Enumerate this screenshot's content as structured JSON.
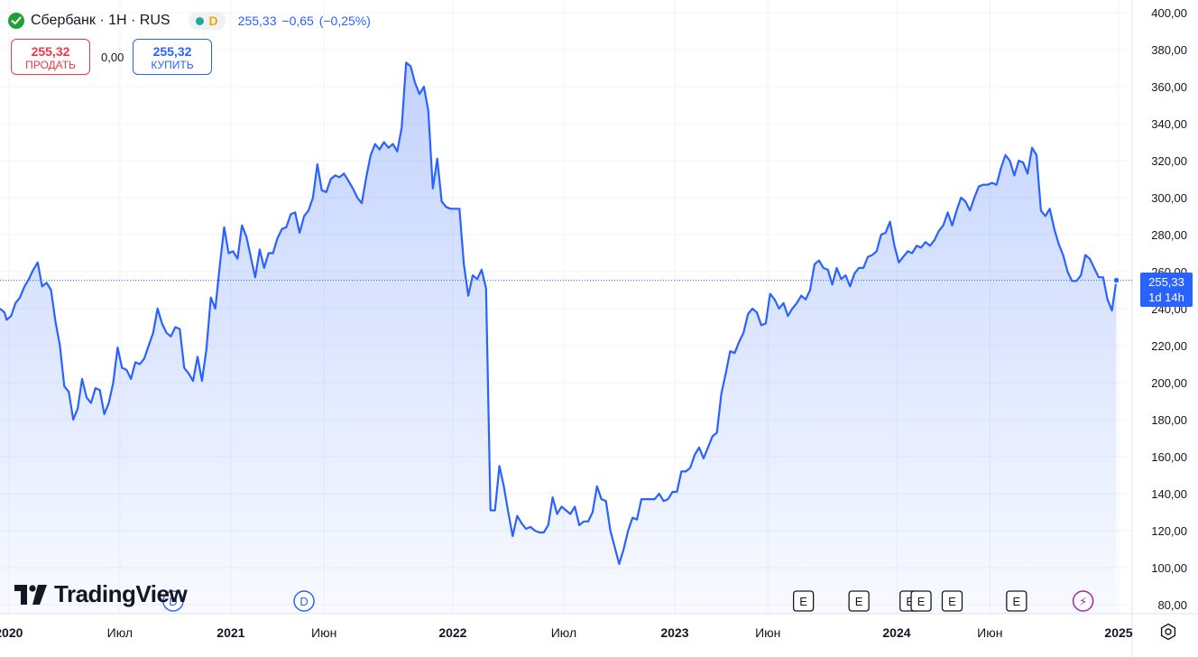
{
  "header": {
    "symbol": "Сбербанк · 1Н · RUS",
    "status_letter": "D",
    "last_price": "255,33",
    "change": "−0,65",
    "change_pct": "(−0,25%)"
  },
  "trade": {
    "sell_price": "255,32",
    "sell_label": "ПРОДАТЬ",
    "spread": "0,00",
    "buy_price": "255,32",
    "buy_label": "КУПИТЬ"
  },
  "logo": "TradingView",
  "price_tag": {
    "price": "255,33",
    "countdown": "1d 14h"
  },
  "colors": {
    "line": "#2962ff",
    "fill": "#2962ff",
    "sell": "#f23645",
    "buy": "#2962ff",
    "grid": "#f0f3fa"
  },
  "chart_data": {
    "type": "area",
    "title": "Сбербанк · 1Н · RUS",
    "xlabel": "",
    "ylabel": "",
    "ylim": [
      80,
      400
    ],
    "xlim": [
      2019.96,
      2025.0
    ],
    "y_ticks": [
      80,
      100,
      120,
      140,
      160,
      180,
      200,
      220,
      240,
      260,
      280,
      300,
      320,
      340,
      360,
      380,
      400
    ],
    "y_tick_labels": [
      "80,00",
      "100,00",
      "120,00",
      "140,00",
      "160,00",
      "180,00",
      "200,00",
      "220,00",
      "240,00",
      "260,00",
      "280,00",
      "300,00",
      "320,00",
      "340,00",
      "360,00",
      "380,00",
      "400,00"
    ],
    "x_ticks": [
      {
        "t": 2020.0,
        "label": "2020",
        "bold": true
      },
      {
        "t": 2020.5,
        "label": "Июл",
        "bold": false
      },
      {
        "t": 2021.0,
        "label": "2021",
        "bold": true
      },
      {
        "t": 2021.42,
        "label": "Июн",
        "bold": false
      },
      {
        "t": 2022.0,
        "label": "2022",
        "bold": true
      },
      {
        "t": 2022.5,
        "label": "Июл",
        "bold": false
      },
      {
        "t": 2023.0,
        "label": "2023",
        "bold": true
      },
      {
        "t": 2023.42,
        "label": "Июн",
        "bold": false
      },
      {
        "t": 2024.0,
        "label": "2024",
        "bold": true
      },
      {
        "t": 2024.42,
        "label": "Июн",
        "bold": false
      },
      {
        "t": 2025.0,
        "label": "2025",
        "bold": true
      }
    ],
    "grid": true,
    "last_value": 255.33,
    "markers": [
      {
        "t": 2020.74,
        "label": "D"
      },
      {
        "t": 2021.33,
        "label": "D"
      },
      {
        "t": 2023.58,
        "label": "E"
      },
      {
        "t": 2023.83,
        "label": "E"
      },
      {
        "t": 2024.06,
        "label": "E"
      },
      {
        "t": 2024.11,
        "label": "E"
      },
      {
        "t": 2024.25,
        "label": "E"
      },
      {
        "t": 2024.54,
        "label": "E"
      },
      {
        "t": 2024.84,
        "label": "⚡"
      }
    ],
    "series": [
      {
        "points": [
          [
            2019.96,
            240
          ],
          [
            2019.98,
            238
          ],
          [
            2019.99,
            234
          ],
          [
            2020.01,
            236
          ],
          [
            2020.03,
            243
          ],
          [
            2020.05,
            246
          ],
          [
            2020.07,
            252
          ],
          [
            2020.09,
            256
          ],
          [
            2020.11,
            261
          ],
          [
            2020.13,
            265
          ],
          [
            2020.15,
            252
          ],
          [
            2020.17,
            254
          ],
          [
            2020.19,
            250
          ],
          [
            2020.21,
            233
          ],
          [
            2020.23,
            220
          ],
          [
            2020.25,
            198
          ],
          [
            2020.27,
            195
          ],
          [
            2020.29,
            180
          ],
          [
            2020.31,
            186
          ],
          [
            2020.33,
            202
          ],
          [
            2020.35,
            192
          ],
          [
            2020.37,
            189
          ],
          [
            2020.39,
            197
          ],
          [
            2020.41,
            196
          ],
          [
            2020.43,
            183
          ],
          [
            2020.45,
            189
          ],
          [
            2020.47,
            200
          ],
          [
            2020.49,
            219
          ],
          [
            2020.51,
            208
          ],
          [
            2020.53,
            207
          ],
          [
            2020.55,
            202
          ],
          [
            2020.57,
            211
          ],
          [
            2020.59,
            210
          ],
          [
            2020.61,
            213
          ],
          [
            2020.63,
            220
          ],
          [
            2020.65,
            227
          ],
          [
            2020.67,
            240
          ],
          [
            2020.69,
            232
          ],
          [
            2020.71,
            227
          ],
          [
            2020.73,
            225
          ],
          [
            2020.75,
            230
          ],
          [
            2020.77,
            229
          ],
          [
            2020.79,
            208
          ],
          [
            2020.81,
            205
          ],
          [
            2020.83,
            201
          ],
          [
            2020.85,
            214
          ],
          [
            2020.87,
            201
          ],
          [
            2020.89,
            218
          ],
          [
            2020.91,
            246
          ],
          [
            2020.93,
            240
          ],
          [
            2020.95,
            263
          ],
          [
            2020.97,
            284
          ],
          [
            2020.99,
            270
          ],
          [
            2021.01,
            271
          ],
          [
            2021.03,
            267
          ],
          [
            2021.05,
            285
          ],
          [
            2021.07,
            279
          ],
          [
            2021.09,
            268
          ],
          [
            2021.11,
            257
          ],
          [
            2021.13,
            272
          ],
          [
            2021.15,
            262
          ],
          [
            2021.17,
            270
          ],
          [
            2021.19,
            270
          ],
          [
            2021.21,
            278
          ],
          [
            2021.23,
            283
          ],
          [
            2021.25,
            284
          ],
          [
            2021.27,
            291
          ],
          [
            2021.29,
            292
          ],
          [
            2021.31,
            281
          ],
          [
            2021.33,
            290
          ],
          [
            2021.35,
            293
          ],
          [
            2021.37,
            300
          ],
          [
            2021.39,
            318
          ],
          [
            2021.41,
            304
          ],
          [
            2021.43,
            303
          ],
          [
            2021.45,
            310
          ],
          [
            2021.47,
            312
          ],
          [
            2021.49,
            311
          ],
          [
            2021.51,
            313
          ],
          [
            2021.53,
            309
          ],
          [
            2021.55,
            305
          ],
          [
            2021.57,
            300
          ],
          [
            2021.59,
            297
          ],
          [
            2021.61,
            311
          ],
          [
            2021.63,
            323
          ],
          [
            2021.65,
            329
          ],
          [
            2021.67,
            326
          ],
          [
            2021.69,
            330
          ],
          [
            2021.71,
            327
          ],
          [
            2021.73,
            329
          ],
          [
            2021.75,
            325
          ],
          [
            2021.77,
            338
          ],
          [
            2021.79,
            373
          ],
          [
            2021.81,
            371
          ],
          [
            2021.83,
            362
          ],
          [
            2021.85,
            356
          ],
          [
            2021.87,
            360
          ],
          [
            2021.89,
            347
          ],
          [
            2021.91,
            305
          ],
          [
            2021.93,
            321
          ],
          [
            2021.95,
            298
          ],
          [
            2021.97,
            295
          ],
          [
            2021.99,
            294
          ],
          [
            2022.01,
            294
          ],
          [
            2022.03,
            294
          ],
          [
            2022.05,
            264
          ],
          [
            2022.07,
            247
          ],
          [
            2022.09,
            258
          ],
          [
            2022.11,
            256
          ],
          [
            2022.13,
            261
          ],
          [
            2022.15,
            251
          ],
          [
            2022.17,
            131
          ],
          [
            2022.19,
            131
          ],
          [
            2022.21,
            155
          ],
          [
            2022.23,
            144
          ],
          [
            2022.25,
            130
          ],
          [
            2022.27,
            117
          ],
          [
            2022.29,
            128
          ],
          [
            2022.31,
            124
          ],
          [
            2022.33,
            121
          ],
          [
            2022.35,
            122
          ],
          [
            2022.37,
            120
          ],
          [
            2022.39,
            119
          ],
          [
            2022.41,
            119
          ],
          [
            2022.43,
            123
          ],
          [
            2022.45,
            138
          ],
          [
            2022.47,
            129
          ],
          [
            2022.49,
            133
          ],
          [
            2022.51,
            131
          ],
          [
            2022.53,
            129
          ],
          [
            2022.55,
            133
          ],
          [
            2022.57,
            123
          ],
          [
            2022.59,
            125
          ],
          [
            2022.61,
            125
          ],
          [
            2022.63,
            130
          ],
          [
            2022.65,
            144
          ],
          [
            2022.67,
            137
          ],
          [
            2022.69,
            136
          ],
          [
            2022.71,
            120
          ],
          [
            2022.73,
            111
          ],
          [
            2022.75,
            102
          ],
          [
            2022.77,
            110
          ],
          [
            2022.79,
            120
          ],
          [
            2022.81,
            127
          ],
          [
            2022.83,
            126
          ],
          [
            2022.85,
            137
          ],
          [
            2022.87,
            137
          ],
          [
            2022.89,
            137
          ],
          [
            2022.91,
            137
          ],
          [
            2022.93,
            140
          ],
          [
            2022.95,
            136
          ],
          [
            2022.97,
            137
          ],
          [
            2022.99,
            141
          ],
          [
            2023.01,
            141
          ],
          [
            2023.03,
            152
          ],
          [
            2023.05,
            152
          ],
          [
            2023.07,
            154
          ],
          [
            2023.09,
            161
          ],
          [
            2023.11,
            165
          ],
          [
            2023.13,
            159
          ],
          [
            2023.15,
            165
          ],
          [
            2023.17,
            171
          ],
          [
            2023.19,
            173
          ],
          [
            2023.21,
            194
          ],
          [
            2023.23,
            205
          ],
          [
            2023.25,
            217
          ],
          [
            2023.27,
            216
          ],
          [
            2023.29,
            222
          ],
          [
            2023.31,
            227
          ],
          [
            2023.33,
            237
          ],
          [
            2023.35,
            240
          ],
          [
            2023.37,
            238
          ],
          [
            2023.39,
            231
          ],
          [
            2023.41,
            232
          ],
          [
            2023.43,
            248
          ],
          [
            2023.45,
            245
          ],
          [
            2023.47,
            240
          ],
          [
            2023.49,
            243
          ],
          [
            2023.51,
            236
          ],
          [
            2023.53,
            240
          ],
          [
            2023.55,
            243
          ],
          [
            2023.57,
            247
          ],
          [
            2023.59,
            245
          ],
          [
            2023.61,
            250
          ],
          [
            2023.63,
            264
          ],
          [
            2023.65,
            266
          ],
          [
            2023.67,
            262
          ],
          [
            2023.69,
            261
          ],
          [
            2023.71,
            253
          ],
          [
            2023.73,
            262
          ],
          [
            2023.75,
            256
          ],
          [
            2023.77,
            258
          ],
          [
            2023.79,
            252
          ],
          [
            2023.81,
            259
          ],
          [
            2023.83,
            262
          ],
          [
            2023.85,
            262
          ],
          [
            2023.87,
            268
          ],
          [
            2023.89,
            269
          ],
          [
            2023.91,
            271
          ],
          [
            2023.93,
            280
          ],
          [
            2023.95,
            281
          ],
          [
            2023.97,
            287
          ],
          [
            2023.99,
            274
          ],
          [
            2024.01,
            265
          ],
          [
            2024.03,
            268
          ],
          [
            2024.05,
            271
          ],
          [
            2024.07,
            270
          ],
          [
            2024.09,
            274
          ],
          [
            2024.11,
            273
          ],
          [
            2024.13,
            276
          ],
          [
            2024.15,
            274
          ],
          [
            2024.17,
            277
          ],
          [
            2024.19,
            282
          ],
          [
            2024.21,
            285
          ],
          [
            2024.23,
            292
          ],
          [
            2024.25,
            285
          ],
          [
            2024.27,
            293
          ],
          [
            2024.29,
            300
          ],
          [
            2024.31,
            298
          ],
          [
            2024.33,
            293
          ],
          [
            2024.35,
            300
          ],
          [
            2024.37,
            306
          ],
          [
            2024.39,
            307
          ],
          [
            2024.41,
            307
          ],
          [
            2024.43,
            308
          ],
          [
            2024.45,
            307
          ],
          [
            2024.47,
            316
          ],
          [
            2024.49,
            323
          ],
          [
            2024.51,
            320
          ],
          [
            2024.53,
            312
          ],
          [
            2024.55,
            320
          ],
          [
            2024.57,
            319
          ],
          [
            2024.59,
            313
          ],
          [
            2024.61,
            327
          ],
          [
            2024.63,
            323
          ],
          [
            2024.65,
            293
          ],
          [
            2024.67,
            290
          ],
          [
            2024.69,
            294
          ],
          [
            2024.71,
            283
          ],
          [
            2024.73,
            275
          ],
          [
            2024.75,
            269
          ],
          [
            2024.77,
            260
          ],
          [
            2024.79,
            255
          ],
          [
            2024.81,
            255
          ],
          [
            2024.83,
            258
          ],
          [
            2024.85,
            269
          ],
          [
            2024.87,
            267
          ],
          [
            2024.89,
            262
          ],
          [
            2024.91,
            257
          ],
          [
            2024.93,
            257
          ],
          [
            2024.95,
            245
          ],
          [
            2024.97,
            239
          ],
          [
            2024.99,
            255.33
          ]
        ]
      }
    ]
  }
}
